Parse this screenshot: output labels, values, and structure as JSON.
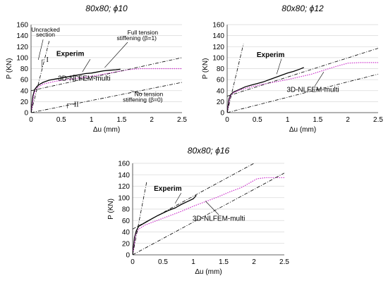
{
  "chart_data": [
    {
      "type": "line",
      "title": "80x80; ϕ10",
      "xlabel": "Δu (mm)",
      "ylabel": "P (KN)",
      "xlim": [
        0,
        2.5
      ],
      "ylim": [
        0,
        160
      ],
      "xticks": [
        "0",
        "0.5",
        "1",
        "1.5",
        "2",
        "2.5"
      ],
      "yticks": [
        "0",
        "20",
        "40",
        "60",
        "80",
        "100",
        "120",
        "140",
        "160"
      ],
      "grid": "horizontal",
      "series": [
        {
          "name": "Experim",
          "style": "solid",
          "color": "#000000",
          "x": [
            0,
            0.03,
            0.06,
            0.1,
            0.15,
            0.2,
            0.3,
            0.4,
            0.5,
            0.6,
            0.7,
            0.8,
            0.9,
            1.0,
            1.1,
            1.2,
            1.3,
            1.4,
            1.48
          ],
          "y": [
            0,
            30,
            42,
            48,
            52,
            55,
            59,
            61,
            63,
            65,
            67,
            69,
            71,
            72,
            74,
            76,
            77,
            78,
            79
          ]
        },
        {
          "name": "3D-NLFEM-multi",
          "style": "dotted",
          "color": "#cc33cc",
          "x": [
            0,
            0.05,
            0.1,
            0.2,
            0.4,
            0.6,
            0.8,
            1.0,
            1.2,
            1.4,
            1.6,
            1.8,
            2.0,
            2.2,
            2.5
          ],
          "y": [
            0,
            35,
            45,
            52,
            57,
            60,
            63,
            66,
            70,
            74,
            78,
            80,
            80,
            80,
            80
          ]
        },
        {
          "name": "",
          "style": "dashdot",
          "color": "#000000",
          "x": [
            0,
            0.3
          ],
          "y": [
            0,
            130
          ]
        },
        {
          "name": "",
          "style": "dashdot",
          "color": "#000000",
          "x": [
            0,
            2.5
          ],
          "y": [
            40,
            100
          ]
        },
        {
          "name": "",
          "style": "dashdot",
          "color": "#000000",
          "x": [
            0,
            2.5
          ],
          "y": [
            0,
            55
          ]
        }
      ],
      "annotations": [
        {
          "text": "Uncracked",
          "x": 0.24,
          "y": 147
        },
        {
          "text": "section",
          "x": 0.24,
          "y": 138
        },
        {
          "text": "I",
          "x": 0.27,
          "y": 92
        },
        {
          "text": "Full tension",
          "x": 1.85,
          "y": 142
        },
        {
          "text": "stiffening (β=1)",
          "x": 1.75,
          "y": 132
        },
        {
          "text": "Experim",
          "x": 0.65,
          "y": 103
        },
        {
          "text": "3D-NLFEM-multi",
          "x": 0.88,
          "y": 58
        },
        {
          "text": "No tension",
          "x": 1.95,
          "y": 30
        },
        {
          "text": "stiffening (β=0)",
          "x": 1.85,
          "y": 20
        },
        {
          "text": "II",
          "x": 0.75,
          "y": 11
        }
      ]
    },
    {
      "type": "line",
      "title": "80x80; ϕ12",
      "xlabel": "Δu (mm)",
      "ylabel": "P (KN)",
      "xlim": [
        0,
        2.5
      ],
      "ylim": [
        0,
        160
      ],
      "xticks": [
        "0",
        "0.5",
        "1",
        "1.5",
        "2",
        "2.5"
      ],
      "yticks": [
        "0",
        "20",
        "40",
        "60",
        "80",
        "100",
        "120",
        "140",
        "160"
      ],
      "grid": "horizontal",
      "series": [
        {
          "name": "Experim",
          "style": "solid",
          "color": "#000000",
          "x": [
            0,
            0.03,
            0.06,
            0.1,
            0.2,
            0.3,
            0.4,
            0.5,
            0.6,
            0.7,
            0.8,
            0.9,
            1.0,
            1.1,
            1.2,
            1.27
          ],
          "y": [
            0,
            25,
            33,
            37,
            42,
            47,
            50,
            53,
            56,
            60,
            64,
            68,
            72,
            75,
            79,
            82
          ]
        },
        {
          "name": "3D-NLFEM-multi",
          "style": "dotted",
          "color": "#cc33cc",
          "x": [
            0,
            0.05,
            0.1,
            0.2,
            0.4,
            0.6,
            0.8,
            1.0,
            1.2,
            1.4,
            1.6,
            1.8,
            2.0,
            2.2,
            2.5
          ],
          "y": [
            0,
            30,
            36,
            41,
            47,
            52,
            56,
            60,
            65,
            70,
            77,
            84,
            90,
            91,
            91
          ]
        },
        {
          "name": "",
          "style": "dashdot",
          "color": "#000000",
          "x": [
            0,
            0.27
          ],
          "y": [
            0,
            125
          ]
        },
        {
          "name": "",
          "style": "dashdot",
          "color": "#000000",
          "x": [
            0,
            2.5
          ],
          "y": [
            30,
            117
          ]
        },
        {
          "name": "",
          "style": "dashdot",
          "color": "#000000",
          "x": [
            0,
            2.5
          ],
          "y": [
            0,
            70
          ]
        }
      ],
      "annotations": [
        {
          "text": "Experim",
          "x": 0.72,
          "y": 101
        },
        {
          "text": "3D-NLFEM-multi",
          "x": 1.42,
          "y": 38
        }
      ]
    },
    {
      "type": "line",
      "title": "80x80; ϕ16",
      "xlabel": "Δu (mm)",
      "ylabel": "P (KN)",
      "xlim": [
        0,
        2.5
      ],
      "ylim": [
        0,
        160
      ],
      "xticks": [
        "0",
        "0.5",
        "1",
        "1.5",
        "2",
        "2.5"
      ],
      "yticks": [
        "0",
        "20",
        "40",
        "60",
        "80",
        "100",
        "120",
        "140",
        "160"
      ],
      "grid": "horizontal",
      "series": [
        {
          "name": "Experim",
          "style": "solid",
          "color": "#000000",
          "x": [
            0,
            0.03,
            0.06,
            0.1,
            0.2,
            0.3,
            0.4,
            0.5,
            0.6,
            0.7,
            0.8,
            0.9,
            1.0,
            1.05
          ],
          "y": [
            0,
            30,
            42,
            50,
            56,
            62,
            68,
            73,
            78,
            82,
            88,
            93,
            98,
            104
          ]
        },
        {
          "name": "3D-NLFEM-multi",
          "style": "dotted",
          "color": "#cc33cc",
          "x": [
            0,
            0.05,
            0.1,
            0.2,
            0.4,
            0.6,
            0.8,
            1.0,
            1.2,
            1.4,
            1.6,
            1.8,
            2.05,
            2.2,
            2.5
          ],
          "y": [
            0,
            35,
            45,
            52,
            60,
            68,
            76,
            85,
            93,
            101,
            110,
            118,
            133,
            135,
            135
          ]
        },
        {
          "name": "",
          "style": "dashdot",
          "color": "#000000",
          "x": [
            0,
            0.23
          ],
          "y": [
            0,
            127
          ]
        },
        {
          "name": "",
          "style": "dashdot",
          "color": "#000000",
          "x": [
            0,
            2.0
          ],
          "y": [
            45,
            160
          ]
        },
        {
          "name": "",
          "style": "dashdot",
          "color": "#000000",
          "x": [
            0,
            2.5
          ],
          "y": [
            0,
            143
          ]
        }
      ],
      "annotations": [
        {
          "text": "Experim",
          "x": 0.58,
          "y": 112
        },
        {
          "text": "3D-NLFEM-multi",
          "x": 1.42,
          "y": 60
        }
      ]
    }
  ]
}
